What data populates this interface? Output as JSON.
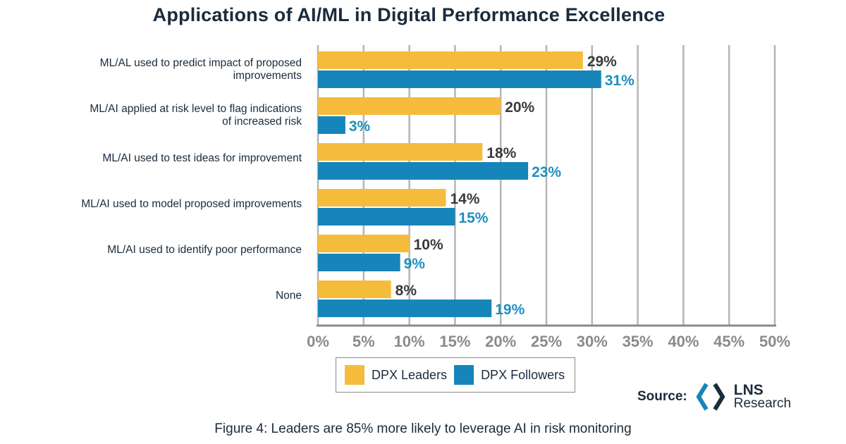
{
  "chart_data": {
    "type": "bar",
    "orientation": "horizontal",
    "title": "Applications of AI/ML in Digital Performance Excellence",
    "categories": [
      [
        "ML/AL used to predict impact of proposed",
        "improvements"
      ],
      [
        "ML/AI applied at risk level to flag indications",
        "of increased risk"
      ],
      [
        "ML/AI used to test ideas for improvement"
      ],
      [
        "ML/AI used to model proposed improvements"
      ],
      [
        "ML/AI used to identify poor performance"
      ],
      [
        "None"
      ]
    ],
    "series": [
      {
        "name": "DPX Leaders",
        "values": [
          29,
          20,
          18,
          14,
          10,
          8
        ],
        "labels": [
          "29%",
          "20%",
          "18%",
          "14%",
          "10%",
          "8%"
        ]
      },
      {
        "name": "DPX Followers",
        "values": [
          31,
          3,
          23,
          15,
          9,
          19
        ],
        "labels": [
          "31%",
          "3%",
          "23%",
          "15%",
          "9%",
          "19%"
        ]
      }
    ],
    "xlim": [
      0,
      50
    ],
    "xticks": [
      "0%",
      "5%",
      "10%",
      "15%",
      "20%",
      "25%",
      "30%",
      "35%",
      "40%",
      "45%",
      "50%"
    ],
    "grid": true,
    "legend_position": "bottom-center",
    "colors": {
      "leaders": "#f5bc3c",
      "followers": "#1685b9",
      "grid": "#b5b5b5"
    }
  },
  "source": {
    "label": "Source:",
    "logo_name": "LNS",
    "logo_sub": "Research",
    "logo_icon": "lns-hexagon-icon"
  },
  "caption": "Figure 4: Leaders are 85% more likely to leverage AI in risk monitoring"
}
